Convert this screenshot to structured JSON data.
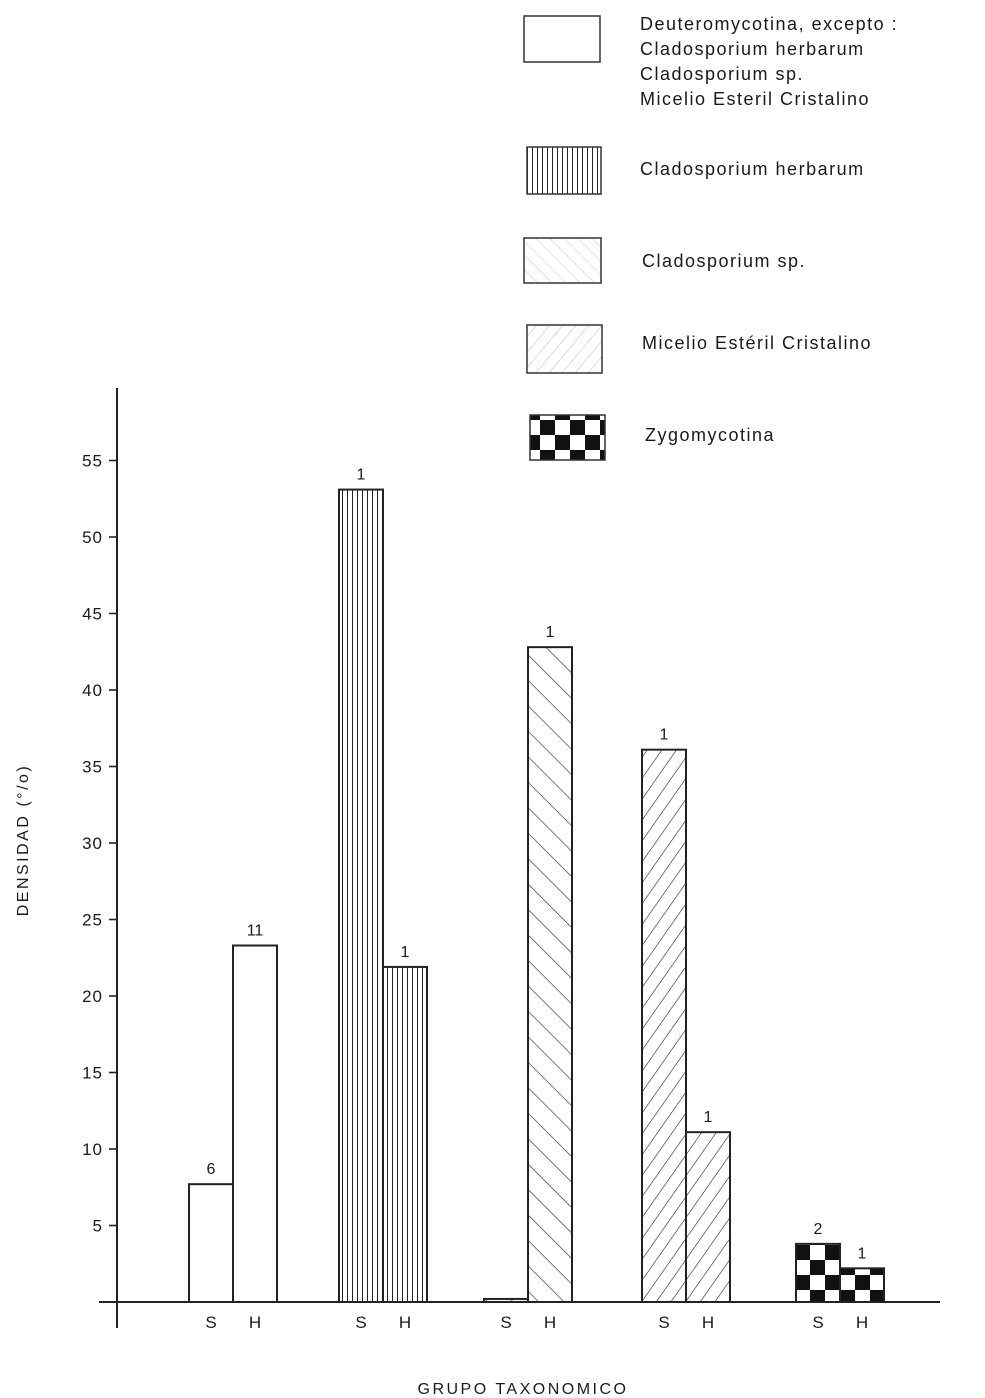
{
  "chart_data": {
    "type": "bar",
    "xlabel": "GRUPO TAXONOMICO",
    "ylabel": "DENSIDAD (°/o)",
    "ylim": [
      0,
      59
    ],
    "yticks": [
      5,
      10,
      15,
      20,
      25,
      30,
      35,
      40,
      45,
      50,
      55
    ],
    "grid": false,
    "legend_position": "top-right",
    "legend": [
      {
        "key": "deutero",
        "pattern": "blank",
        "lines": [
          "Deuteromycotina, excepto :",
          "Cladosporium herbarum",
          "Cladosporium sp.",
          "Micelio Esteril Cristalino"
        ]
      },
      {
        "key": "herbarum",
        "pattern": "vertical-lines",
        "lines": [
          "Cladosporium herbarum"
        ]
      },
      {
        "key": "cladsp",
        "pattern": "diagonal-backslash",
        "lines": [
          "Cladosporium sp."
        ]
      },
      {
        "key": "micelio",
        "pattern": "diagonal-slash",
        "lines": [
          "Micelio Estéril Cristalino"
        ]
      },
      {
        "key": "zygo",
        "pattern": "checkerboard",
        "lines": [
          "Zygomycotina"
        ]
      }
    ],
    "groups": [
      {
        "series": "deutero",
        "bars": [
          {
            "label": "S",
            "value": 7.7,
            "count": "6"
          },
          {
            "label": "H",
            "value": 23.3,
            "count": "11"
          }
        ]
      },
      {
        "series": "herbarum",
        "bars": [
          {
            "label": "S",
            "value": 53.1,
            "count": "1"
          },
          {
            "label": "H",
            "value": 21.9,
            "count": "1"
          }
        ]
      },
      {
        "series": "cladsp",
        "bars": [
          {
            "label": "S",
            "value": 0.2,
            "count": ""
          },
          {
            "label": "H",
            "value": 42.8,
            "count": "1"
          }
        ]
      },
      {
        "series": "micelio",
        "bars": [
          {
            "label": "S",
            "value": 36.1,
            "count": "1"
          },
          {
            "label": "H",
            "value": 11.1,
            "count": "1"
          }
        ]
      },
      {
        "series": "zygo",
        "bars": [
          {
            "label": "S",
            "value": 3.8,
            "count": "2"
          },
          {
            "label": "H",
            "value": 2.2,
            "count": "1"
          }
        ]
      }
    ]
  }
}
